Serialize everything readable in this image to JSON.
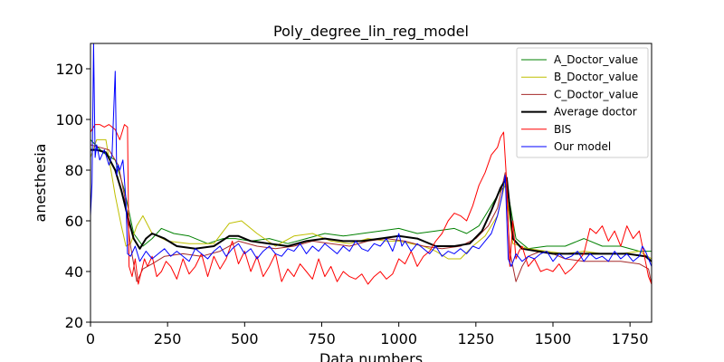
{
  "chart_data": {
    "type": "line",
    "title": "Poly_degree_lin_reg_model",
    "xlabel": "Data numbers",
    "ylabel": "anesthesia",
    "xlim": [
      0,
      1820
    ],
    "ylim": [
      20,
      130
    ],
    "xticks": [
      0,
      250,
      500,
      750,
      1000,
      1250,
      1500,
      1750
    ],
    "yticks": [
      20,
      40,
      60,
      80,
      100,
      120
    ],
    "grid": false,
    "legend_position": "top-right",
    "series": [
      {
        "name": "A_Doctor_value",
        "color": "#008000",
        "width": 1,
        "x": [
          0,
          40,
          80,
          110,
          140,
          170,
          200,
          230,
          270,
          320,
          380,
          430,
          470,
          520,
          580,
          640,
          700,
          760,
          820,
          880,
          940,
          1000,
          1060,
          1120,
          1180,
          1220,
          1260,
          1300,
          1330,
          1350,
          1380,
          1420,
          1480,
          1540,
          1600,
          1660,
          1720,
          1780,
          1820
        ],
        "values": [
          92,
          87,
          84,
          72,
          55,
          50,
          53,
          57,
          55,
          54,
          51,
          53,
          53,
          52,
          53,
          51,
          53,
          55,
          54,
          55,
          56,
          57,
          55,
          56,
          57,
          55,
          58,
          66,
          72,
          74,
          53,
          49,
          50,
          50,
          53,
          50,
          50,
          48,
          48
        ]
      },
      {
        "name": "B_Doctor_value",
        "color": "#bfbf00",
        "width": 1,
        "x": [
          0,
          20,
          50,
          80,
          100,
          115,
          130,
          150,
          170,
          200,
          250,
          320,
          400,
          450,
          490,
          540,
          600,
          660,
          720,
          780,
          840,
          900,
          960,
          1000,
          1040,
          1080,
          1120,
          1160,
          1200,
          1240,
          1280,
          1320,
          1345,
          1370,
          1420,
          1480,
          1540,
          1600,
          1660,
          1720,
          1780,
          1820
        ],
        "values": [
          85,
          92,
          92,
          70,
          58,
          50,
          51,
          58,
          62,
          55,
          52,
          51,
          51,
          59,
          60,
          55,
          50,
          54,
          55,
          52,
          51,
          53,
          52,
          52,
          51,
          50,
          48,
          45,
          45,
          50,
          54,
          62,
          75,
          51,
          49,
          48,
          47,
          48,
          47,
          47,
          48,
          45
        ]
      },
      {
        "name": "C_Doctor_value",
        "color": "#a52a2a",
        "width": 1,
        "x": [
          0,
          30,
          60,
          90,
          110,
          130,
          150,
          170,
          200,
          240,
          300,
          360,
          420,
          480,
          540,
          600,
          660,
          720,
          780,
          840,
          900,
          960,
          1020,
          1080,
          1140,
          1200,
          1250,
          1290,
          1320,
          1345,
          1360,
          1380,
          1400,
          1420,
          1460,
          1500,
          1540,
          1600,
          1660,
          1720,
          1780,
          1810,
          1820
        ],
        "values": [
          90,
          89,
          88,
          82,
          70,
          50,
          36,
          41,
          43,
          46,
          47,
          46,
          48,
          52,
          50,
          49,
          50,
          52,
          51,
          50,
          52,
          53,
          52,
          50,
          49,
          50,
          53,
          58,
          65,
          79,
          48,
          36,
          42,
          46,
          48,
          47,
          45,
          44,
          44,
          44,
          43,
          41,
          35
        ]
      },
      {
        "name": "Average doctor",
        "color": "#000000",
        "width": 2,
        "x": [
          0,
          20,
          50,
          80,
          100,
          120,
          140,
          160,
          180,
          200,
          240,
          280,
          340,
          400,
          450,
          480,
          520,
          580,
          640,
          700,
          760,
          820,
          880,
          940,
          1000,
          1060,
          1120,
          1180,
          1230,
          1270,
          1300,
          1330,
          1350,
          1370,
          1400,
          1450,
          1500,
          1560,
          1620,
          1680,
          1740,
          1800,
          1820
        ],
        "values": [
          88,
          88,
          87,
          80,
          72,
          62,
          53,
          49,
          53,
          55,
          53,
          50,
          49,
          50,
          54,
          54,
          52,
          51,
          50,
          52,
          53,
          52,
          52,
          53,
          54,
          53,
          50,
          50,
          51,
          56,
          64,
          73,
          77,
          53,
          49,
          48,
          47,
          47,
          47,
          47,
          47,
          46,
          44
        ]
      },
      {
        "name": "BIS",
        "color": "#ff0000",
        "width": 1,
        "x": [
          0,
          15,
          30,
          45,
          60,
          80,
          95,
          110,
          120,
          125,
          135,
          145,
          155,
          165,
          175,
          185,
          200,
          215,
          230,
          245,
          260,
          280,
          300,
          320,
          340,
          360,
          380,
          400,
          420,
          440,
          460,
          480,
          500,
          520,
          540,
          560,
          580,
          600,
          620,
          640,
          660,
          680,
          700,
          720,
          740,
          760,
          780,
          800,
          820,
          840,
          860,
          880,
          900,
          920,
          940,
          960,
          980,
          1000,
          1020,
          1040,
          1060,
          1080,
          1100,
          1120,
          1140,
          1160,
          1180,
          1200,
          1220,
          1240,
          1260,
          1280,
          1300,
          1320,
          1330,
          1340,
          1350,
          1360,
          1370,
          1380,
          1390,
          1400,
          1420,
          1440,
          1460,
          1480,
          1500,
          1520,
          1540,
          1560,
          1580,
          1600,
          1620,
          1640,
          1660,
          1680,
          1700,
          1720,
          1740,
          1760,
          1780,
          1800,
          1810,
          1820
        ],
        "values": [
          95,
          98,
          98,
          97,
          98,
          96,
          92,
          98,
          97,
          42,
          38,
          45,
          35,
          40,
          45,
          42,
          46,
          38,
          40,
          44,
          42,
          37,
          45,
          39,
          42,
          47,
          38,
          46,
          41,
          45,
          52,
          43,
          48,
          40,
          46,
          38,
          42,
          47,
          36,
          41,
          38,
          43,
          40,
          37,
          45,
          38,
          42,
          36,
          40,
          38,
          37,
          39,
          35,
          38,
          40,
          37,
          39,
          45,
          43,
          48,
          42,
          46,
          48,
          52,
          55,
          60,
          63,
          62,
          60,
          66,
          74,
          79,
          86,
          89,
          93,
          95,
          75,
          42,
          60,
          45,
          48,
          50,
          42,
          45,
          40,
          41,
          40,
          43,
          39,
          41,
          44,
          47,
          57,
          55,
          58,
          52,
          56,
          50,
          58,
          53,
          56,
          44,
          38,
          35
        ]
      },
      {
        "name": "Our model",
        "color": "#0000ff",
        "width": 1,
        "x": [
          0,
          5,
          10,
          15,
          20,
          30,
          45,
          60,
          70,
          80,
          85,
          90,
          95,
          105,
          115,
          120,
          130,
          145,
          160,
          180,
          200,
          220,
          240,
          260,
          280,
          300,
          320,
          340,
          360,
          380,
          400,
          420,
          440,
          460,
          480,
          500,
          520,
          540,
          560,
          580,
          600,
          620,
          640,
          660,
          680,
          700,
          720,
          740,
          760,
          780,
          800,
          820,
          840,
          860,
          880,
          900,
          920,
          940,
          960,
          980,
          1000,
          1010,
          1020,
          1040,
          1060,
          1080,
          1100,
          1120,
          1140,
          1160,
          1180,
          1200,
          1220,
          1240,
          1260,
          1280,
          1300,
          1320,
          1335,
          1345,
          1355,
          1365,
          1380,
          1400,
          1420,
          1440,
          1460,
          1480,
          1500,
          1520,
          1540,
          1560,
          1580,
          1600,
          1620,
          1640,
          1660,
          1680,
          1700,
          1720,
          1740,
          1760,
          1780,
          1790,
          1800,
          1810,
          1820
        ],
        "values": [
          62,
          75,
          130,
          85,
          90,
          84,
          88,
          82,
          86,
          119,
          78,
          82,
          80,
          84,
          68,
          47,
          46,
          50,
          44,
          48,
          45,
          47,
          49,
          46,
          48,
          46,
          44,
          49,
          47,
          45,
          48,
          50,
          46,
          49,
          51,
          47,
          49,
          45,
          48,
          50,
          47,
          46,
          49,
          48,
          51,
          47,
          50,
          48,
          51,
          49,
          47,
          50,
          48,
          52,
          49,
          48,
          51,
          50,
          53,
          48,
          55,
          50,
          52,
          48,
          51,
          49,
          47,
          50,
          46,
          48,
          47,
          49,
          47,
          50,
          49,
          52,
          55,
          62,
          70,
          78,
          45,
          42,
          47,
          44,
          46,
          45,
          47,
          48,
          44,
          47,
          45,
          46,
          48,
          44,
          47,
          45,
          46,
          44,
          48,
          45,
          47,
          44,
          46,
          50,
          48,
          45,
          42
        ]
      }
    ]
  }
}
